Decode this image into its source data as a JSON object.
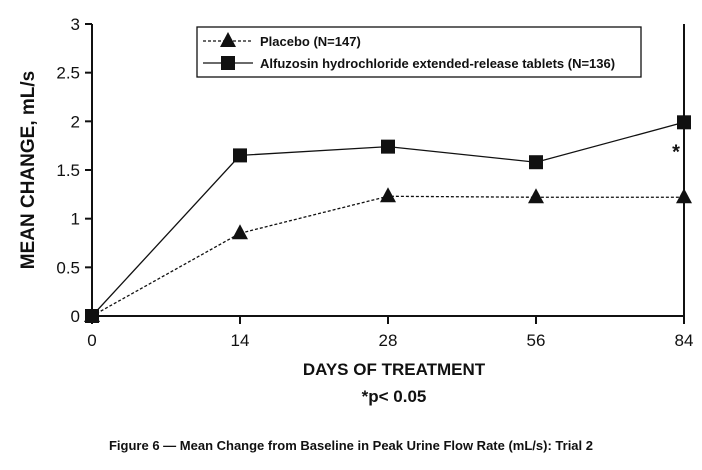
{
  "chart_data": {
    "type": "line",
    "title": "Figure 6 — Mean Change from Baseline in Peak Urine Flow Rate (mL/s): Trial 2",
    "xlabel": "DAYS OF TREATMENT",
    "ylabel": "MEAN CHANGE, mL/s",
    "footnote": "*p< 0.05",
    "categories": [
      "0",
      "14",
      "28",
      "56",
      "84"
    ],
    "y_ticks": [
      "0",
      "0.5",
      "1",
      "1.5",
      "2",
      "2.5",
      "3"
    ],
    "ylim": [
      0,
      3
    ],
    "grid": false,
    "legend_position": "top-center",
    "series": [
      {
        "name": "Placebo (N=147)",
        "marker": "triangle",
        "line": "dashed",
        "values": [
          0,
          0.85,
          1.23,
          1.22,
          1.22
        ]
      },
      {
        "name": "Alfuzosin hydrochloride extended-release tablets (N=136)",
        "marker": "square",
        "line": "solid",
        "values": [
          0,
          1.65,
          1.74,
          1.58,
          1.99
        ]
      }
    ],
    "annotations": [
      {
        "category": "84",
        "text": "*"
      }
    ],
    "color": "#111111"
  }
}
